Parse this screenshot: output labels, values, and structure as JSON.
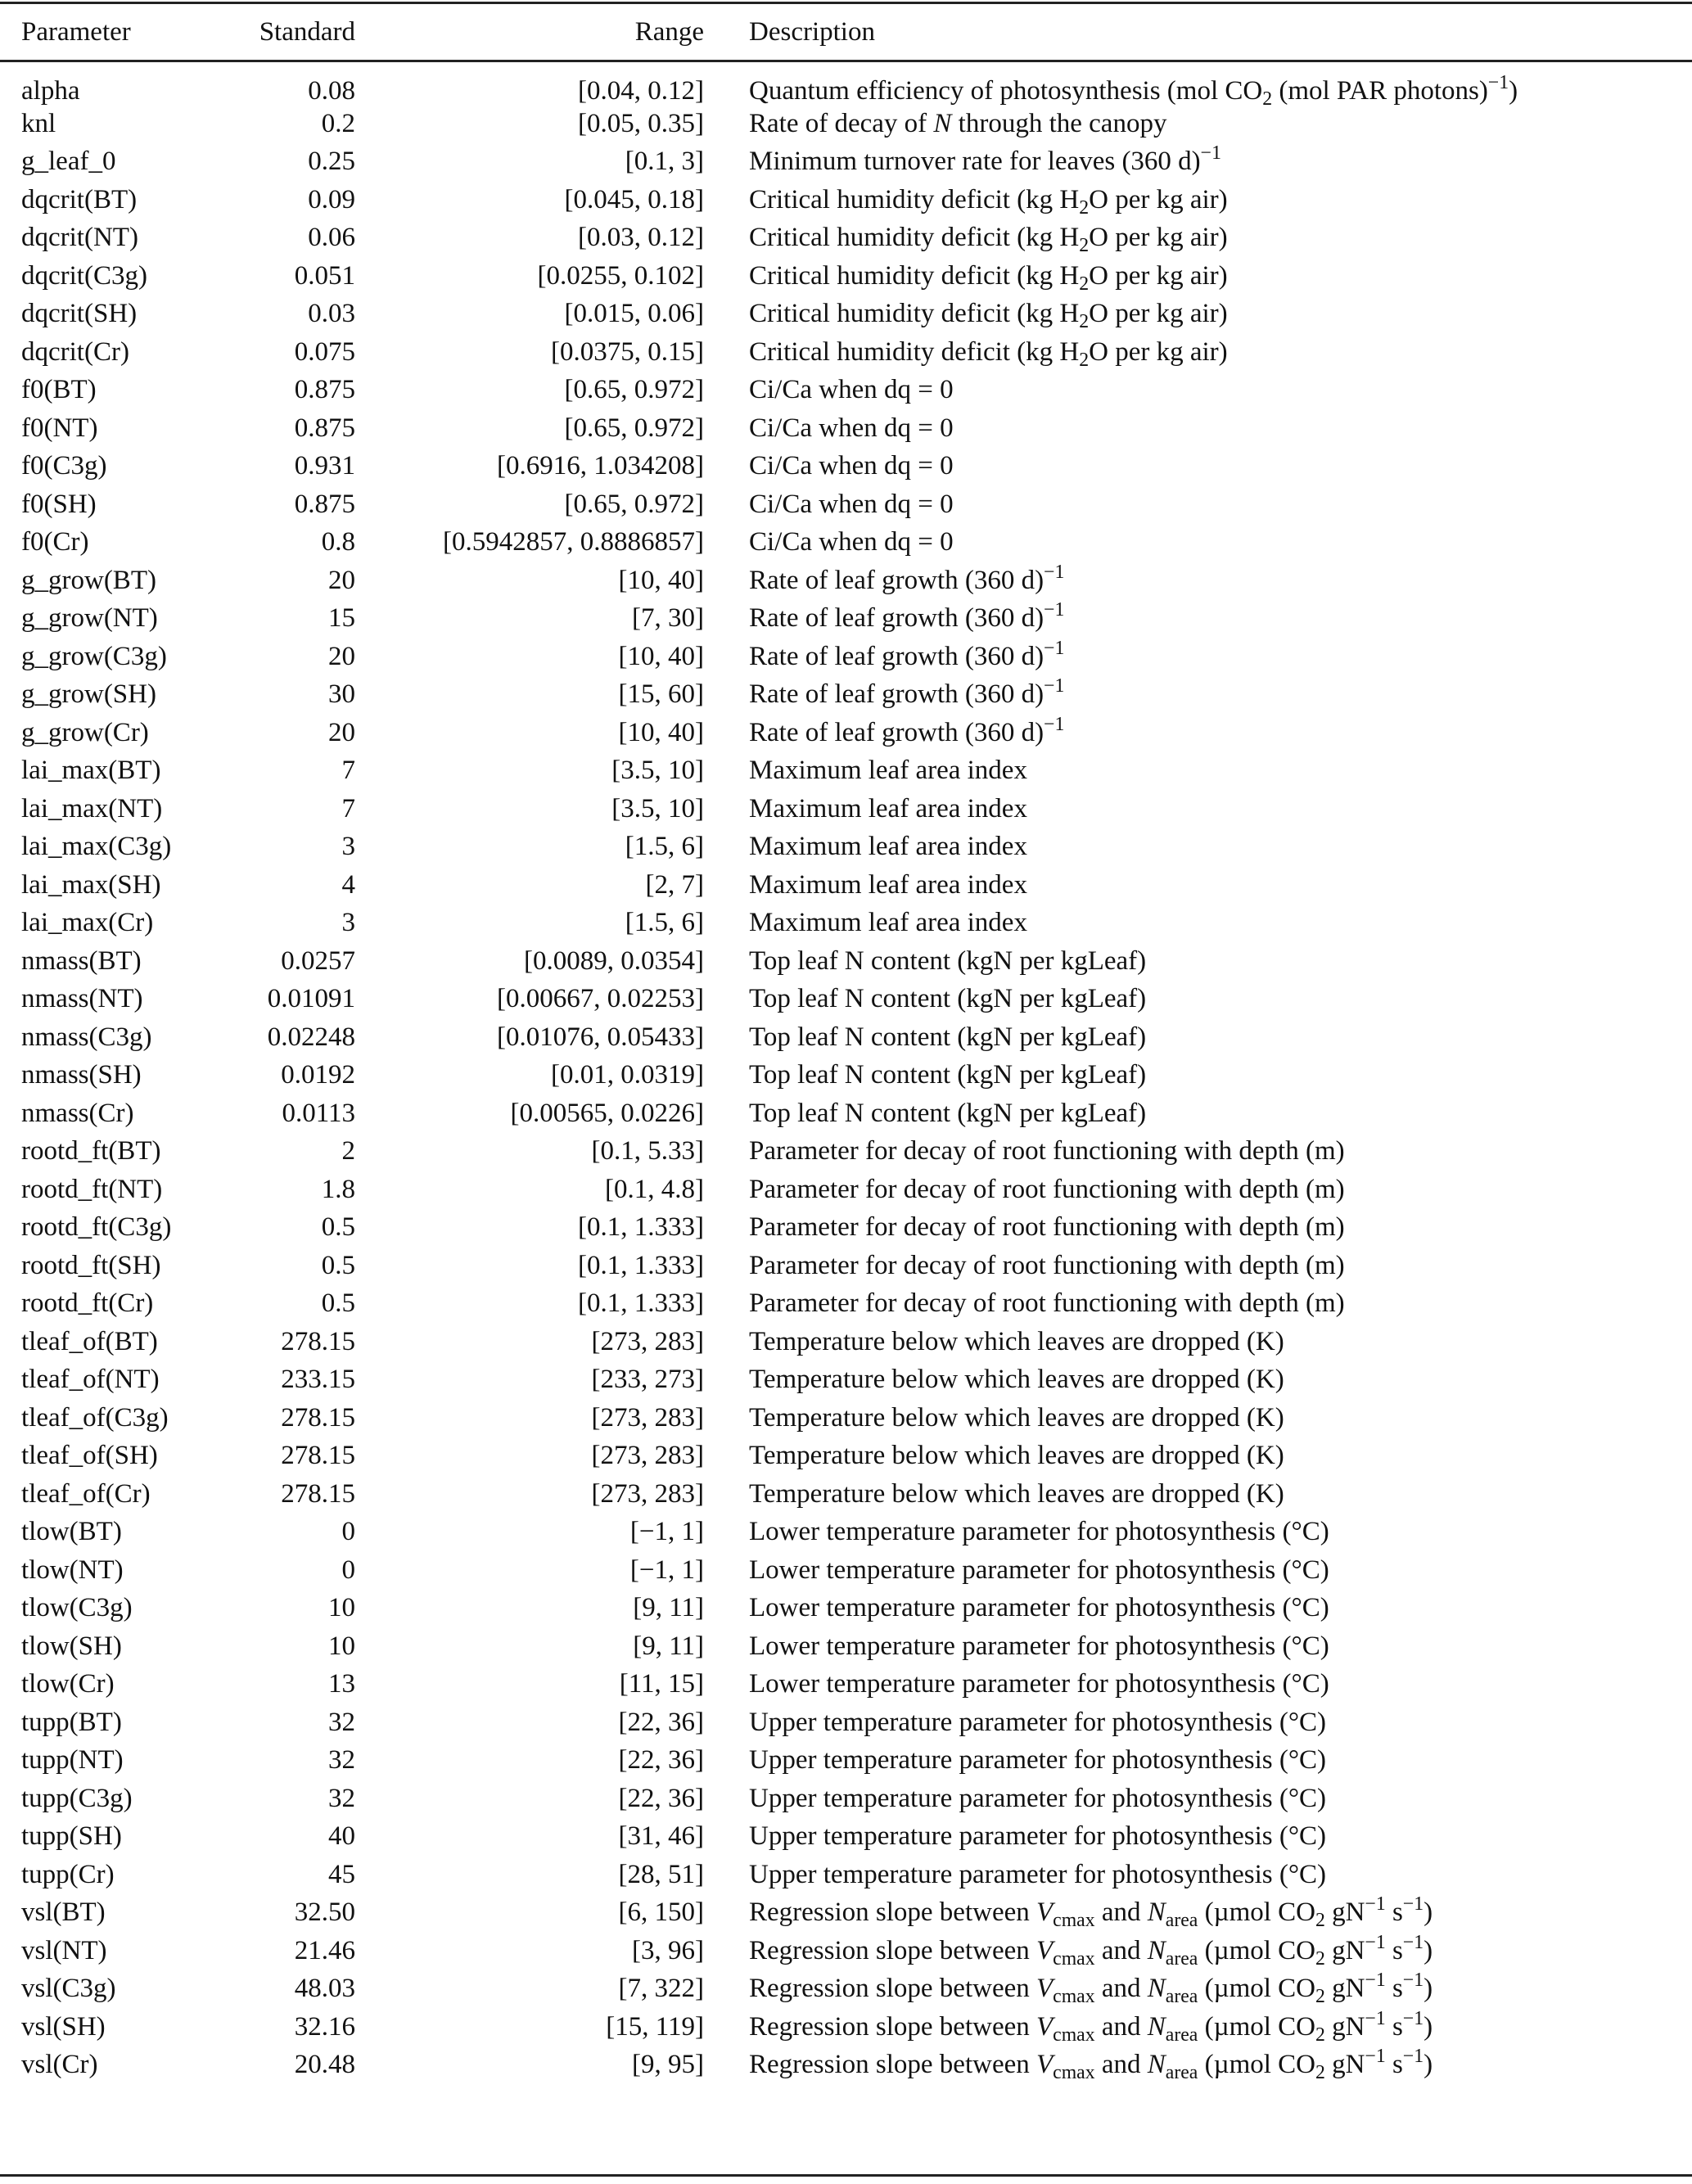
{
  "headers": {
    "parameter": "Parameter",
    "standard": "Standard",
    "range": "Range",
    "description": "Description"
  },
  "rows": [
    {
      "p": "alpha",
      "s": "0.08",
      "r": "[0.04, 0.12]",
      "d": [
        {
          "t": "Quantum efficiency of photosynthesis (mol CO"
        },
        {
          "sub": "2"
        },
        {
          "t": " (mol PAR photons)"
        },
        {
          "sup": "−1"
        },
        {
          "t": ")"
        }
      ]
    },
    {
      "p": "knl",
      "s": "0.2",
      "r": "[0.05, 0.35]",
      "d": [
        {
          "t": "Rate of decay of "
        },
        {
          "i": "N"
        },
        {
          "t": " through the canopy"
        }
      ]
    },
    {
      "p": "g_leaf_0",
      "s": "0.25",
      "r": "[0.1, 3]",
      "d": [
        {
          "t": "Minimum turnover rate for leaves (360 d)"
        },
        {
          "sup": "−1"
        }
      ]
    },
    {
      "p": "dqcrit(BT)",
      "s": "0.09",
      "r": "[0.045, 0.18]",
      "d": [
        {
          "t": "Critical humidity deficit (kg H"
        },
        {
          "sub": "2"
        },
        {
          "t": "O per kg air)"
        }
      ]
    },
    {
      "p": "dqcrit(NT)",
      "s": "0.06",
      "r": "[0.03, 0.12]",
      "d": [
        {
          "t": "Critical humidity deficit (kg H"
        },
        {
          "sub": "2"
        },
        {
          "t": "O per kg air)"
        }
      ]
    },
    {
      "p": "dqcrit(C3g)",
      "s": "0.051",
      "r": "[0.0255, 0.102]",
      "d": [
        {
          "t": "Critical humidity deficit (kg H"
        },
        {
          "sub": "2"
        },
        {
          "t": "O per kg air)"
        }
      ]
    },
    {
      "p": "dqcrit(SH)",
      "s": "0.03",
      "r": "[0.015, 0.06]",
      "d": [
        {
          "t": "Critical humidity deficit (kg H"
        },
        {
          "sub": "2"
        },
        {
          "t": "O per kg air)"
        }
      ]
    },
    {
      "p": "dqcrit(Cr)",
      "s": "0.075",
      "r": "[0.0375, 0.15]",
      "d": [
        {
          "t": "Critical humidity deficit (kg H"
        },
        {
          "sub": "2"
        },
        {
          "t": "O per kg air)"
        }
      ]
    },
    {
      "p": "f0(BT)",
      "s": "0.875",
      "r": "[0.65, 0.972]",
      "d": [
        {
          "t": "Ci/Ca when dq = 0"
        }
      ]
    },
    {
      "p": "f0(NT)",
      "s": "0.875",
      "r": "[0.65, 0.972]",
      "d": [
        {
          "t": "Ci/Ca when dq = 0"
        }
      ]
    },
    {
      "p": "f0(C3g)",
      "s": "0.931",
      "r": "[0.6916, 1.034208]",
      "d": [
        {
          "t": "Ci/Ca when dq = 0"
        }
      ]
    },
    {
      "p": "f0(SH)",
      "s": "0.875",
      "r": "[0.65, 0.972]",
      "d": [
        {
          "t": "Ci/Ca when dq = 0"
        }
      ]
    },
    {
      "p": "f0(Cr)",
      "s": "0.8",
      "r": "[0.5942857, 0.8886857]",
      "d": [
        {
          "t": "Ci/Ca when dq = 0"
        }
      ]
    },
    {
      "p": "g_grow(BT)",
      "s": "20",
      "r": "[10, 40]",
      "d": [
        {
          "t": "Rate of leaf growth (360 d)"
        },
        {
          "sup": "−1"
        }
      ]
    },
    {
      "p": "g_grow(NT)",
      "s": "15",
      "r": "[7, 30]",
      "d": [
        {
          "t": "Rate of leaf growth (360 d)"
        },
        {
          "sup": "−1"
        }
      ]
    },
    {
      "p": "g_grow(C3g)",
      "s": "20",
      "r": "[10, 40]",
      "d": [
        {
          "t": "Rate of leaf growth (360 d)"
        },
        {
          "sup": "−1"
        }
      ]
    },
    {
      "p": "g_grow(SH)",
      "s": "30",
      "r": "[15, 60]",
      "d": [
        {
          "t": "Rate of leaf growth (360 d)"
        },
        {
          "sup": "−1"
        }
      ]
    },
    {
      "p": "g_grow(Cr)",
      "s": "20",
      "r": "[10, 40]",
      "d": [
        {
          "t": "Rate of leaf growth (360 d)"
        },
        {
          "sup": "−1"
        }
      ]
    },
    {
      "p": "lai_max(BT)",
      "s": "7",
      "r": "[3.5, 10]",
      "d": [
        {
          "t": "Maximum leaf area index"
        }
      ]
    },
    {
      "p": "lai_max(NT)",
      "s": "7",
      "r": "[3.5, 10]",
      "d": [
        {
          "t": "Maximum leaf area index"
        }
      ]
    },
    {
      "p": "lai_max(C3g)",
      "s": "3",
      "r": "[1.5, 6]",
      "d": [
        {
          "t": "Maximum leaf area index"
        }
      ]
    },
    {
      "p": "lai_max(SH)",
      "s": "4",
      "r": "[2, 7]",
      "d": [
        {
          "t": "Maximum leaf area index"
        }
      ]
    },
    {
      "p": "lai_max(Cr)",
      "s": "3",
      "r": "[1.5, 6]",
      "d": [
        {
          "t": "Maximum leaf area index"
        }
      ]
    },
    {
      "p": "nmass(BT)",
      "s": "0.0257",
      "r": "[0.0089, 0.0354]",
      "d": [
        {
          "t": "Top leaf N content (kgN per kgLeaf)"
        }
      ]
    },
    {
      "p": "nmass(NT)",
      "s": "0.01091",
      "r": "[0.00667, 0.02253]",
      "d": [
        {
          "t": "Top leaf N content (kgN per kgLeaf)"
        }
      ]
    },
    {
      "p": "nmass(C3g)",
      "s": "0.02248",
      "r": "[0.01076, 0.05433]",
      "d": [
        {
          "t": "Top leaf N content (kgN per kgLeaf)"
        }
      ]
    },
    {
      "p": "nmass(SH)",
      "s": "0.0192",
      "r": "[0.01, 0.0319]",
      "d": [
        {
          "t": "Top leaf N content (kgN per kgLeaf)"
        }
      ]
    },
    {
      "p": "nmass(Cr)",
      "s": "0.0113",
      "r": "[0.00565, 0.0226]",
      "d": [
        {
          "t": "Top leaf N content (kgN per kgLeaf)"
        }
      ]
    },
    {
      "p": "rootd_ft(BT)",
      "s": "2",
      "r": "[0.1, 5.33]",
      "d": [
        {
          "t": "Parameter for decay of root functioning with depth (m)"
        }
      ]
    },
    {
      "p": "rootd_ft(NT)",
      "s": "1.8",
      "r": "[0.1, 4.8]",
      "d": [
        {
          "t": "Parameter for decay of root functioning with depth (m)"
        }
      ]
    },
    {
      "p": "rootd_ft(C3g)",
      "s": "0.5",
      "r": "[0.1, 1.333]",
      "d": [
        {
          "t": "Parameter for decay of root functioning with depth (m)"
        }
      ]
    },
    {
      "p": "rootd_ft(SH)",
      "s": "0.5",
      "r": "[0.1, 1.333]",
      "d": [
        {
          "t": "Parameter for decay of root functioning with depth (m)"
        }
      ]
    },
    {
      "p": "rootd_ft(Cr)",
      "s": "0.5",
      "r": "[0.1, 1.333]",
      "d": [
        {
          "t": "Parameter for decay of root functioning with depth (m)"
        }
      ]
    },
    {
      "p": "tleaf_of(BT)",
      "s": "278.15",
      "r": "[273, 283]",
      "d": [
        {
          "t": "Temperature below which leaves are dropped (K)"
        }
      ]
    },
    {
      "p": "tleaf_of(NT)",
      "s": "233.15",
      "r": "[233, 273]",
      "d": [
        {
          "t": "Temperature below which leaves are dropped (K)"
        }
      ]
    },
    {
      "p": "tleaf_of(C3g)",
      "s": "278.15",
      "r": "[273, 283]",
      "d": [
        {
          "t": "Temperature below which leaves are dropped (K)"
        }
      ]
    },
    {
      "p": "tleaf_of(SH)",
      "s": "278.15",
      "r": "[273, 283]",
      "d": [
        {
          "t": "Temperature below which leaves are dropped (K)"
        }
      ]
    },
    {
      "p": "tleaf_of(Cr)",
      "s": "278.15",
      "r": "[273, 283]",
      "d": [
        {
          "t": "Temperature below which leaves are dropped (K)"
        }
      ]
    },
    {
      "p": "tlow(BT)",
      "s": "0",
      "r": "[−1, 1]",
      "d": [
        {
          "t": "Lower temperature parameter for photosynthesis (°C)"
        }
      ]
    },
    {
      "p": "tlow(NT)",
      "s": "0",
      "r": "[−1, 1]",
      "d": [
        {
          "t": "Lower temperature parameter for photosynthesis (°C)"
        }
      ]
    },
    {
      "p": "tlow(C3g)",
      "s": "10",
      "r": "[9, 11]",
      "d": [
        {
          "t": "Lower temperature parameter for photosynthesis (°C)"
        }
      ]
    },
    {
      "p": "tlow(SH)",
      "s": "10",
      "r": "[9, 11]",
      "d": [
        {
          "t": "Lower temperature parameter for photosynthesis (°C)"
        }
      ]
    },
    {
      "p": "tlow(Cr)",
      "s": "13",
      "r": "[11, 15]",
      "d": [
        {
          "t": "Lower temperature parameter for photosynthesis (°C)"
        }
      ]
    },
    {
      "p": "tupp(BT)",
      "s": "32",
      "r": "[22, 36]",
      "d": [
        {
          "t": "Upper temperature parameter for photosynthesis (°C)"
        }
      ]
    },
    {
      "p": "tupp(NT)",
      "s": "32",
      "r": "[22, 36]",
      "d": [
        {
          "t": "Upper temperature parameter for photosynthesis (°C)"
        }
      ]
    },
    {
      "p": "tupp(C3g)",
      "s": "32",
      "r": "[22, 36]",
      "d": [
        {
          "t": "Upper temperature parameter for photosynthesis (°C)"
        }
      ]
    },
    {
      "p": "tupp(SH)",
      "s": "40",
      "r": "[31, 46]",
      "d": [
        {
          "t": "Upper temperature parameter for photosynthesis (°C)"
        }
      ]
    },
    {
      "p": "tupp(Cr)",
      "s": "45",
      "r": "[28, 51]",
      "d": [
        {
          "t": "Upper temperature parameter for photosynthesis (°C)"
        }
      ]
    },
    {
      "p": "vsl(BT)",
      "s": "32.50",
      "r": "[6, 150]",
      "d": [
        {
          "t": "Regression slope between "
        },
        {
          "i": "V"
        },
        {
          "sub": "cmax"
        },
        {
          "t": " and "
        },
        {
          "i": "N"
        },
        {
          "sub": "area"
        },
        {
          "t": " (µmol CO"
        },
        {
          "sub": "2"
        },
        {
          "t": " gN"
        },
        {
          "sup": "−1"
        },
        {
          "t": " s"
        },
        {
          "sup": "−1"
        },
        {
          "t": ")"
        }
      ]
    },
    {
      "p": "vsl(NT)",
      "s": "21.46",
      "r": "[3, 96]",
      "d": [
        {
          "t": "Regression slope between "
        },
        {
          "i": "V"
        },
        {
          "sub": "cmax"
        },
        {
          "t": " and "
        },
        {
          "i": "N"
        },
        {
          "sub": "area"
        },
        {
          "t": " (µmol CO"
        },
        {
          "sub": "2"
        },
        {
          "t": " gN"
        },
        {
          "sup": "−1"
        },
        {
          "t": " s"
        },
        {
          "sup": "−1"
        },
        {
          "t": ")"
        }
      ]
    },
    {
      "p": "vsl(C3g)",
      "s": "48.03",
      "r": "[7, 322]",
      "d": [
        {
          "t": "Regression slope between "
        },
        {
          "i": "V"
        },
        {
          "sub": "cmax"
        },
        {
          "t": " and "
        },
        {
          "i": "N"
        },
        {
          "sub": "area"
        },
        {
          "t": " (µmol CO"
        },
        {
          "sub": "2"
        },
        {
          "t": " gN"
        },
        {
          "sup": "−1"
        },
        {
          "t": " s"
        },
        {
          "sup": "−1"
        },
        {
          "t": ")"
        }
      ]
    },
    {
      "p": "vsl(SH)",
      "s": "32.16",
      "r": "[15, 119]",
      "d": [
        {
          "t": "Regression slope between "
        },
        {
          "i": "V"
        },
        {
          "sub": "cmax"
        },
        {
          "t": " and "
        },
        {
          "i": "N"
        },
        {
          "sub": "area"
        },
        {
          "t": " (µmol CO"
        },
        {
          "sub": "2"
        },
        {
          "t": " gN"
        },
        {
          "sup": "−1"
        },
        {
          "t": " s"
        },
        {
          "sup": "−1"
        },
        {
          "t": ")"
        }
      ]
    },
    {
      "p": "vsl(Cr)",
      "s": "20.48",
      "r": "[9, 95]",
      "d": [
        {
          "t": "Regression slope between "
        },
        {
          "i": "V"
        },
        {
          "sub": "cmax"
        },
        {
          "t": " and "
        },
        {
          "i": "N"
        },
        {
          "sub": "area"
        },
        {
          "t": " (µmol CO"
        },
        {
          "sub": "2"
        },
        {
          "t": " gN"
        },
        {
          "sup": "−1"
        },
        {
          "t": " s"
        },
        {
          "sup": "−1"
        },
        {
          "t": ")"
        }
      ]
    }
  ]
}
